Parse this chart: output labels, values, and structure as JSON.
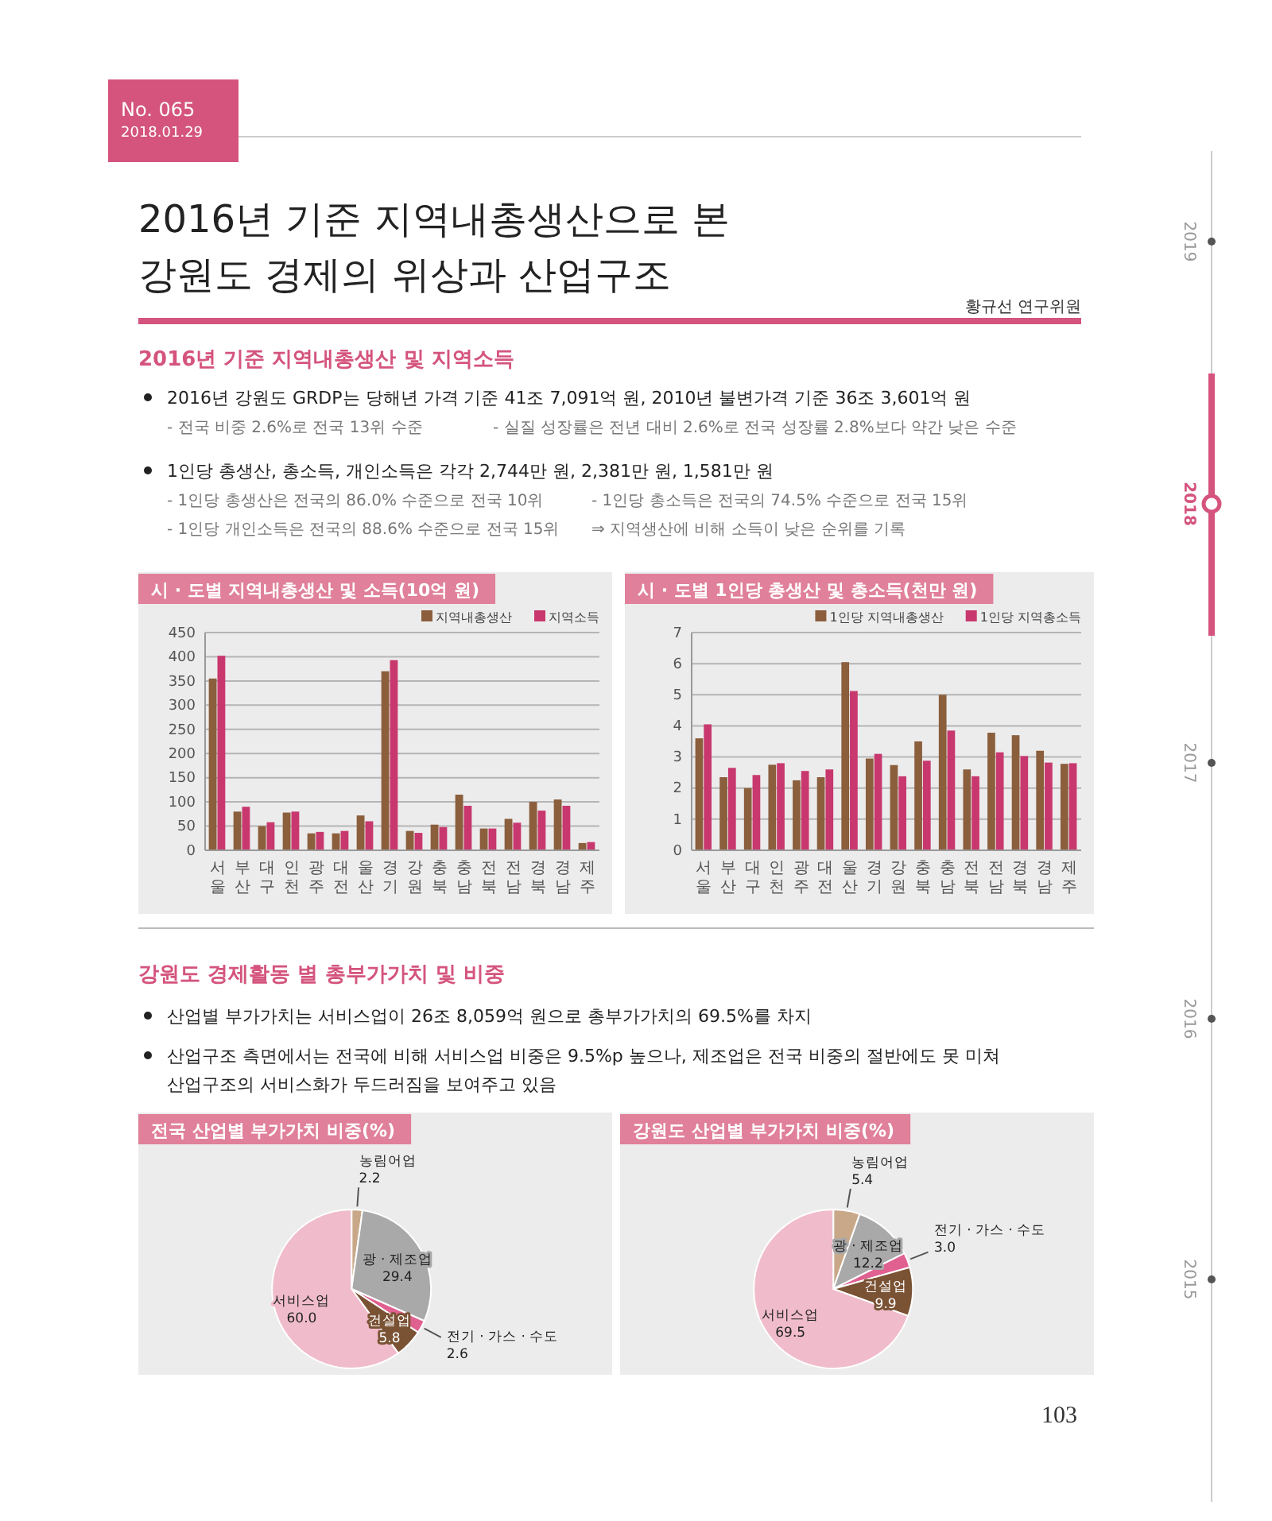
{
  "chart_data": [
    {
      "type": "bar",
      "title": "시 · 도별 지역내총생산 및 소득(10억 원)",
      "categories": [
        "서울",
        "부산",
        "대구",
        "인천",
        "광주",
        "대전",
        "울산",
        "경기",
        "강원",
        "충북",
        "충남",
        "전북",
        "전남",
        "경북",
        "경남",
        "제주"
      ],
      "series": [
        {
          "name": "지역내총생산",
          "color": "#8b5e3c",
          "values": [
            355,
            80,
            50,
            78,
            35,
            35,
            72,
            370,
            40,
            53,
            115,
            45,
            65,
            100,
            105,
            15
          ]
        },
        {
          "name": "지역소득",
          "color": "#c8386e",
          "values": [
            402,
            90,
            58,
            80,
            38,
            40,
            60,
            393,
            36,
            48,
            92,
            45,
            57,
            82,
            92,
            17
          ]
        }
      ],
      "ylim": [
        0,
        450
      ],
      "yticks": [
        0,
        50,
        100,
        150,
        200,
        250,
        300,
        350,
        400,
        450
      ],
      "grid": "y",
      "legend": "top right",
      "annotations": [
        "No. 065",
        "2018.01.29",
        "2016년 기준 지역내총생산으로 본",
        "강원도 경제의 위상과 산업구조",
        "황규선 연구위원",
        "2016년 기준 지역내총생산 및 지역소득",
        "2016년 강원도 GRDP는 당해년 가격 기준 41조 7,091억 원, 2010년 불변가격 기준 36조 3,601억 원",
        "- 전국 비중 2.6%로 전국 13위 수준",
        "- 실질 성장률은 전년 대비 2.6%로 전국 성장률 2.8%보다 약간 낮은 수준",
        "1인당 총생산, 총소득, 개인소득은 각각 2,744만 원, 2,381만 원, 1,581만 원",
        "- 1인당 총생산은 전국의 86.0% 수준으로 전국 10위",
        "- 1인당 총소득은 전국의 74.5% 수준으로 전국 15위",
        "- 1인당 개인소득은 전국의 88.6% 수준으로 전국 15위",
        "⇒ 지역생산에 비해 소득이 낮은 순위를 기록",
        "2019",
        "2018",
        "2017",
        "2016",
        "2015",
        "103"
      ]
    },
    {
      "type": "bar",
      "title": "시 · 도별 1인당 총생산 및 총소득(천만 원)",
      "categories": [
        "서울",
        "부산",
        "대구",
        "인천",
        "광주",
        "대전",
        "울산",
        "경기",
        "강원",
        "충북",
        "충남",
        "전북",
        "전남",
        "경북",
        "경남",
        "제주"
      ],
      "series": [
        {
          "name": "1인당 지역내총생산",
          "color": "#8b5e3c",
          "values": [
            3.6,
            2.35,
            2.0,
            2.75,
            2.25,
            2.35,
            6.05,
            2.95,
            2.74,
            3.5,
            5.0,
            2.6,
            3.78,
            3.7,
            3.2,
            2.78
          ]
        },
        {
          "name": "1인당 지역총소득",
          "color": "#c8386e",
          "values": [
            4.05,
            2.65,
            2.42,
            2.8,
            2.55,
            2.6,
            5.12,
            3.1,
            2.38,
            2.88,
            3.85,
            2.38,
            3.15,
            3.03,
            2.82,
            2.8
          ]
        }
      ],
      "ylim": [
        0,
        7
      ],
      "yticks": [
        0,
        1,
        2,
        3,
        4,
        5,
        6,
        7
      ],
      "grid": "y",
      "legend": "top right"
    },
    {
      "type": "pie",
      "title": "전국 산업별 부가가치 비중(%)",
      "categories": [
        "농림어업",
        "광 · 제조업",
        "전기 · 가스 · 수도",
        "건설업",
        "서비스업"
      ],
      "values": [
        2.2,
        29.4,
        2.6,
        5.8,
        60.0
      ],
      "value_labels": [
        "2.2",
        "29.4",
        "2.6",
        "5.8",
        "60.0"
      ],
      "colors": [
        "#c8a888",
        "#a9a9a9",
        "#e0608f",
        "#7a5234",
        "#f0bccb"
      ],
      "annotations": [
        "강원도 경제활동 별 총부가가치 및 비중",
        "산업별 부가가치는 서비스업이 26조 8,059억 원으로 총부가가치의 69.5%를 차지",
        "산업구조 측면에서는 전국에 비해 서비스업 비중은 9.5%p 높으나, 제조업은 전국 비중의 절반에도 못 미쳐 산업구조의 서비스화가 두드러짐을 보여주고 있음"
      ]
    },
    {
      "type": "pie",
      "title": "강원도 산업별 부가가치 비중(%)",
      "categories": [
        "농림어업",
        "광 · 제조업",
        "전기 · 가스 · 수도",
        "건설업",
        "서비스업"
      ],
      "values": [
        5.4,
        12.2,
        3.0,
        9.9,
        69.5
      ],
      "value_labels": [
        "5.4",
        "12.2",
        "3.0",
        "9.9",
        "69.5"
      ],
      "colors": [
        "#c8a888",
        "#a9a9a9",
        "#e0608f",
        "#7a5234",
        "#f0bccb"
      ]
    }
  ]
}
